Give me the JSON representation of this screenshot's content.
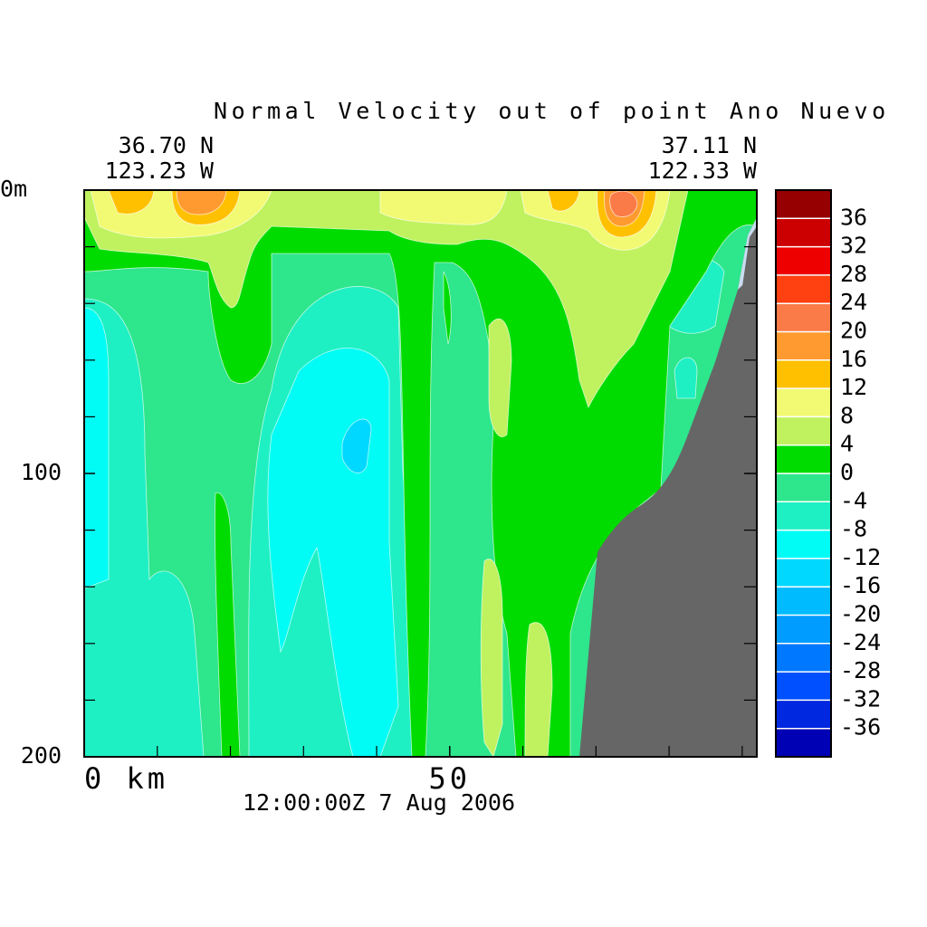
{
  "chart_data": {
    "type": "contour",
    "title": "Normal Velocity out of point Ano Nuevo",
    "left_lat": "36.70 N",
    "left_lon": "123.23 W",
    "right_lat": "37.11 N",
    "right_lon": "122.33 W",
    "timestamp": "12:00:00Z   7 Aug 2006",
    "xlim": [
      0,
      92
    ],
    "xticks": [
      {
        "value": 0,
        "label": "0 km"
      },
      50
    ],
    "xminor_ticks": [
      10,
      20,
      30,
      40,
      60,
      70,
      80,
      90
    ],
    "ylim": [
      0,
      200
    ],
    "yticks": [
      {
        "value": 0,
        "label": "0m"
      },
      100,
      200
    ],
    "yminor_ticks": [
      20,
      40,
      60,
      80,
      120,
      140,
      160,
      180
    ],
    "land_color": "#666666",
    "colorbar": {
      "levels": [
        -40,
        -36,
        -32,
        -28,
        -24,
        -20,
        -16,
        -12,
        -8,
        -4,
        0,
        4,
        8,
        12,
        16,
        20,
        24,
        28,
        32,
        36,
        40
      ],
      "colors": [
        "#0000b4",
        "#0028e0",
        "#0050ff",
        "#0078ff",
        "#009cff",
        "#00bcff",
        "#00d8ff",
        "#00fcf4",
        "#1ef0c4",
        "#2ee68c",
        "#00dc00",
        "#c0f260",
        "#f2fa74",
        "#ffc000",
        "#ff9a30",
        "#fa7a48",
        "#ff4010",
        "#ee0000",
        "#cc0000",
        "#960000"
      ],
      "ticks": [
        -36,
        -32,
        -28,
        -24,
        -20,
        -16,
        -12,
        -8,
        -4,
        0,
        4,
        8,
        12,
        16,
        20,
        24,
        28,
        32,
        36
      ]
    }
  }
}
